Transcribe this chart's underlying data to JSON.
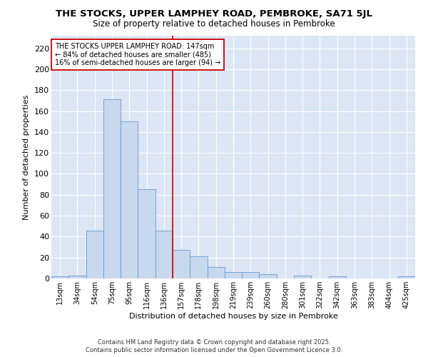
{
  "title": "THE STOCKS, UPPER LAMPHEY ROAD, PEMBROKE, SA71 5JL",
  "subtitle": "Size of property relative to detached houses in Pembroke",
  "xlabel": "Distribution of detached houses by size in Pembroke",
  "ylabel": "Number of detached properties",
  "bar_labels": [
    "13sqm",
    "34sqm",
    "54sqm",
    "75sqm",
    "95sqm",
    "116sqm",
    "136sqm",
    "157sqm",
    "178sqm",
    "198sqm",
    "219sqm",
    "239sqm",
    "260sqm",
    "280sqm",
    "301sqm",
    "322sqm",
    "342sqm",
    "363sqm",
    "383sqm",
    "404sqm",
    "425sqm"
  ],
  "bar_values": [
    2,
    3,
    46,
    171,
    150,
    85,
    46,
    27,
    21,
    11,
    6,
    6,
    4,
    0,
    3,
    0,
    2,
    0,
    0,
    0,
    2
  ],
  "bar_color": "#c8d8ee",
  "bar_edgecolor": "#6699cc",
  "plot_bg_color": "#dce6f5",
  "fig_bg_color": "#ffffff",
  "grid_color": "#ffffff",
  "vline_x": 6.5,
  "vline_color": "#cc0000",
  "annotation_text": "THE STOCKS UPPER LAMPHEY ROAD: 147sqm\n← 84% of detached houses are smaller (485)\n16% of semi-detached houses are larger (94) →",
  "annotation_box_facecolor": "#ffffff",
  "annotation_box_edgecolor": "#cc0000",
  "ylim": [
    0,
    232
  ],
  "yticks": [
    0,
    20,
    40,
    60,
    80,
    100,
    120,
    140,
    160,
    180,
    200,
    220
  ],
  "footnote1": "Contains HM Land Registry data © Crown copyright and database right 2025.",
  "footnote2": "Contains public sector information licensed under the Open Government Licence 3.0."
}
